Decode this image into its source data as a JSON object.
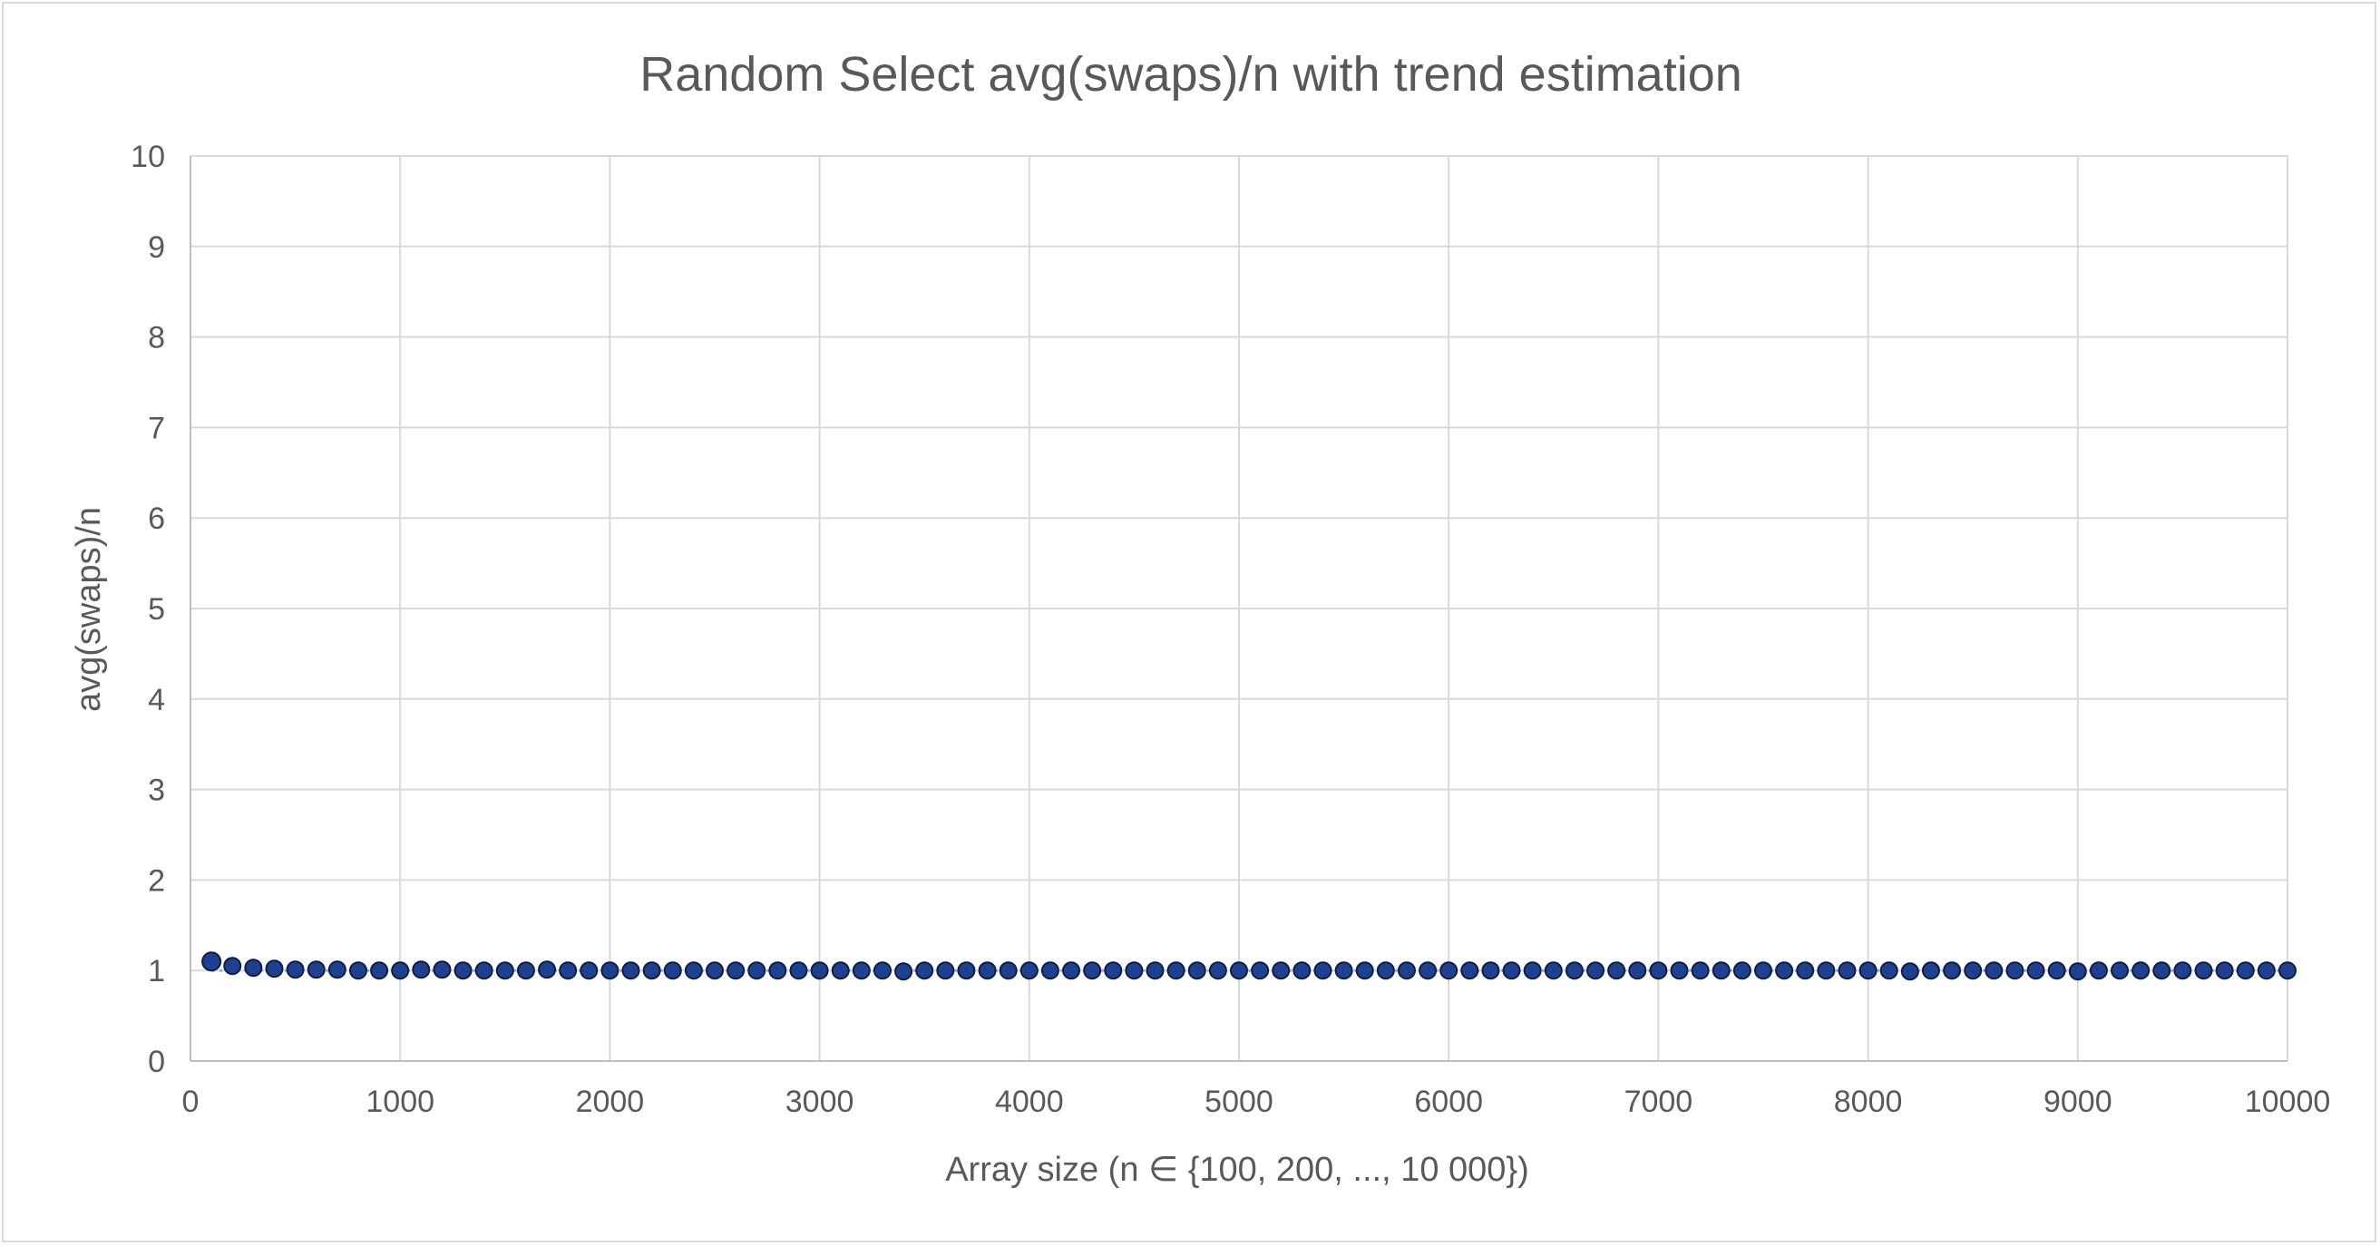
{
  "chart_data": {
    "type": "scatter",
    "title": "Random Select avg(swaps)/n with trend estimation",
    "xlabel": "Array size (n ∈ {100, 200, ..., 10 000})",
    "ylabel": "avg(swaps)/n",
    "xlim": [
      0,
      10000
    ],
    "ylim": [
      0,
      10
    ],
    "xticks": [
      0,
      1000,
      2000,
      3000,
      4000,
      5000,
      6000,
      7000,
      8000,
      9000,
      10000
    ],
    "yticks": [
      0,
      1,
      2,
      3,
      4,
      5,
      6,
      7,
      8,
      9,
      10
    ],
    "grid": true,
    "legend": "none",
    "series": [
      {
        "color": "#1f3f8f",
        "x": [
          100,
          200,
          300,
          400,
          500,
          600,
          700,
          800,
          900,
          1000,
          1100,
          1200,
          1300,
          1400,
          1500,
          1600,
          1700,
          1800,
          1900,
          2000,
          2100,
          2200,
          2300,
          2400,
          2500,
          2600,
          2700,
          2800,
          2900,
          3000,
          3100,
          3200,
          3300,
          3400,
          3500,
          3600,
          3700,
          3800,
          3900,
          4000,
          4100,
          4200,
          4300,
          4400,
          4500,
          4600,
          4700,
          4800,
          4900,
          5000,
          5100,
          5200,
          5300,
          5400,
          5500,
          5600,
          5700,
          5800,
          5900,
          6000,
          6100,
          6200,
          6300,
          6400,
          6500,
          6600,
          6700,
          6800,
          6900,
          7000,
          7100,
          7200,
          7300,
          7400,
          7500,
          7600,
          7700,
          7800,
          7900,
          8000,
          8100,
          8200,
          8300,
          8400,
          8500,
          8600,
          8700,
          8800,
          8900,
          9000,
          9100,
          9200,
          9300,
          9400,
          9500,
          9600,
          9700,
          9800,
          9900,
          10000
        ],
        "y": [
          1.1,
          1.05,
          1.03,
          1.02,
          1.01,
          1.01,
          1.01,
          1.0,
          1.0,
          1.0,
          1.01,
          1.01,
          1.0,
          1.0,
          1.0,
          1.0,
          1.01,
          1.0,
          1.0,
          1.0,
          1.0,
          1.0,
          1.0,
          1.0,
          1.0,
          1.0,
          1.0,
          1.0,
          1.0,
          1.0,
          1.0,
          1.0,
          1.0,
          0.99,
          1.0,
          1.0,
          1.0,
          1.0,
          1.0,
          1.0,
          1.0,
          1.0,
          1.0,
          1.0,
          1.0,
          1.0,
          1.0,
          1.0,
          1.0,
          1.0,
          1.0,
          1.0,
          1.0,
          1.0,
          1.0,
          1.0,
          1.0,
          1.0,
          1.0,
          1.0,
          1.0,
          1.0,
          1.0,
          1.0,
          1.0,
          1.0,
          1.0,
          1.0,
          1.0,
          1.0,
          1.0,
          1.0,
          1.0,
          1.0,
          1.0,
          1.0,
          1.0,
          1.0,
          1.0,
          1.0,
          1.0,
          0.99,
          1.0,
          1.0,
          1.0,
          1.0,
          1.0,
          1.0,
          1.0,
          0.99,
          1.0,
          1.0,
          1.0,
          1.0,
          1.0,
          1.0,
          1.0,
          1.0,
          1.0,
          1.0
        ]
      }
    ],
    "trend": {
      "color": "#8faadc",
      "style": "dotted",
      "value": 1.0
    }
  }
}
